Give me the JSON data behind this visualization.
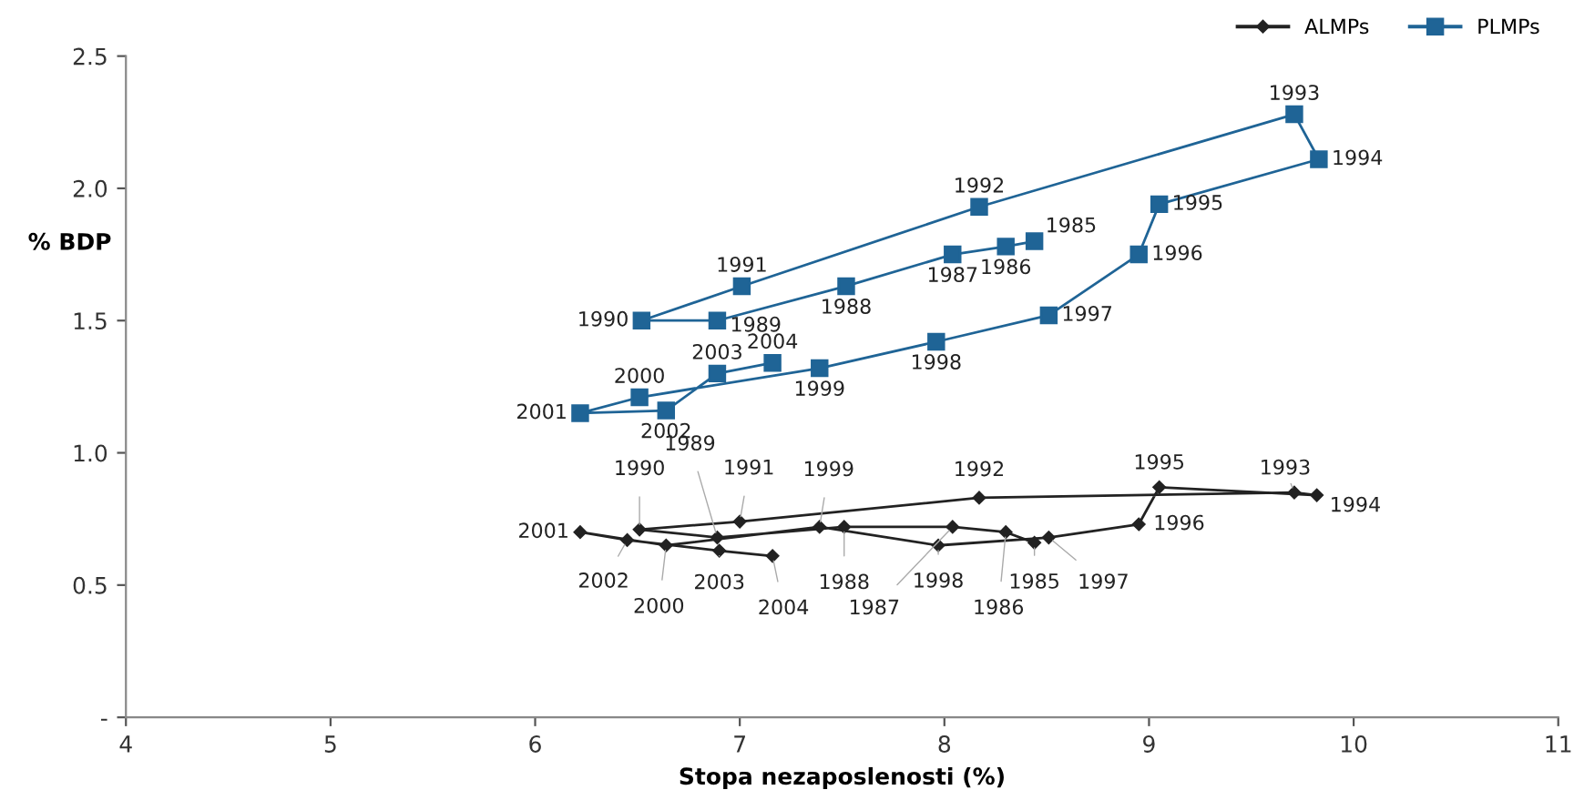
{
  "chart_data": {
    "type": "line",
    "xlabel": "Stopa nezaposlenosti (%)",
    "ylabel": "% BDP",
    "xlim": [
      4,
      11
    ],
    "xticks": [
      4,
      5,
      6,
      7,
      8,
      9,
      10,
      11
    ],
    "ylim": [
      0,
      2.5
    ],
    "yticks": [
      {
        "value": 0,
        "label": "-"
      },
      {
        "value": 0.5,
        "label": "0.5"
      },
      {
        "value": 1.0,
        "label": "1.0"
      },
      {
        "value": 1.5,
        "label": "1.5"
      },
      {
        "value": 2.0,
        "label": "2.0"
      },
      {
        "value": 2.5,
        "label": "2.5"
      }
    ],
    "grid": false,
    "legend": "top right",
    "series": [
      {
        "name": "ALMPs",
        "color": "#222222",
        "marker": "diamond",
        "x": [
          8.44,
          8.3,
          8.04,
          7.51,
          6.89,
          6.51,
          7.0,
          8.17,
          9.71,
          9.82,
          9.05,
          8.95,
          8.51,
          7.97,
          7.39,
          6.64,
          6.22,
          6.45,
          6.9,
          7.16
        ],
        "values": [
          0.66,
          0.7,
          0.72,
          0.72,
          0.68,
          0.71,
          0.74,
          0.83,
          0.85,
          0.84,
          0.87,
          0.73,
          0.68,
          0.65,
          0.72,
          0.65,
          0.7,
          0.67,
          0.63,
          0.61
        ]
      },
      {
        "name": "PLMPs",
        "color": "#1f6496",
        "marker": "square",
        "x": [
          8.44,
          8.3,
          8.04,
          7.52,
          6.89,
          6.52,
          7.01,
          8.17,
          9.71,
          9.83,
          9.05,
          8.95,
          8.51,
          7.96,
          7.39,
          6.51,
          6.22,
          6.64,
          6.89,
          7.16
        ],
        "values": [
          1.8,
          1.78,
          1.75,
          1.63,
          1.5,
          1.5,
          1.63,
          1.93,
          2.28,
          2.11,
          1.94,
          1.75,
          1.52,
          1.42,
          1.32,
          1.21,
          1.15,
          1.16,
          1.3,
          1.34
        ]
      }
    ],
    "annotations": [
      {
        "text": "1985",
        "x": 8.44,
        "y": 1.8
      },
      {
        "text": "1986",
        "x": 8.3,
        "y": 1.78
      },
      {
        "text": "1987",
        "x": 8.04,
        "y": 1.75
      },
      {
        "text": "1988",
        "x": 7.52,
        "y": 1.63
      },
      {
        "text": "1989",
        "x": 6.89,
        "y": 1.5
      },
      {
        "text": "1990",
        "x": 6.52,
        "y": 1.5
      },
      {
        "text": "1991",
        "x": 7.01,
        "y": 1.63
      },
      {
        "text": "1992",
        "x": 8.17,
        "y": 1.93
      },
      {
        "text": "1993",
        "x": 9.71,
        "y": 2.28
      },
      {
        "text": "1994",
        "x": 9.83,
        "y": 2.11
      },
      {
        "text": "1995",
        "x": 9.05,
        "y": 1.94
      },
      {
        "text": "1996",
        "x": 8.95,
        "y": 1.75
      },
      {
        "text": "1997",
        "x": 8.51,
        "y": 1.52
      },
      {
        "text": "1998",
        "x": 7.96,
        "y": 1.42
      },
      {
        "text": "1999",
        "x": 7.39,
        "y": 1.32
      },
      {
        "text": "2000",
        "x": 6.51,
        "y": 1.21
      },
      {
        "text": "2001",
        "x": 6.22,
        "y": 1.15
      },
      {
        "text": "2002",
        "x": 6.64,
        "y": 1.16
      },
      {
        "text": "2003",
        "x": 6.89,
        "y": 1.3
      },
      {
        "text": "2004",
        "x": 7.16,
        "y": 1.34
      },
      {
        "text": "1985",
        "x": 8.44,
        "y": 0.66
      },
      {
        "text": "1986",
        "x": 8.3,
        "y": 0.7
      },
      {
        "text": "1987",
        "x": 8.04,
        "y": 0.72
      },
      {
        "text": "1988",
        "x": 7.51,
        "y": 0.72
      },
      {
        "text": "1989",
        "x": 6.89,
        "y": 0.68
      },
      {
        "text": "1990",
        "x": 6.51,
        "y": 0.71
      },
      {
        "text": "1991",
        "x": 7.0,
        "y": 0.74
      },
      {
        "text": "1992",
        "x": 8.17,
        "y": 0.83
      },
      {
        "text": "1993",
        "x": 9.71,
        "y": 0.85
      },
      {
        "text": "1994",
        "x": 9.82,
        "y": 0.84
      },
      {
        "text": "1995",
        "x": 9.05,
        "y": 0.87
      },
      {
        "text": "1996",
        "x": 8.95,
        "y": 0.73
      },
      {
        "text": "1997",
        "x": 8.51,
        "y": 0.68
      },
      {
        "text": "1998",
        "x": 7.97,
        "y": 0.65
      },
      {
        "text": "1999",
        "x": 7.39,
        "y": 0.72
      },
      {
        "text": "2000",
        "x": 6.64,
        "y": 0.65
      },
      {
        "text": "2001",
        "x": 6.22,
        "y": 0.7
      },
      {
        "text": "2002",
        "x": 6.45,
        "y": 0.67
      },
      {
        "text": "2003",
        "x": 6.9,
        "y": 0.63
      },
      {
        "text": "2004",
        "x": 7.16,
        "y": 0.61
      }
    ]
  }
}
